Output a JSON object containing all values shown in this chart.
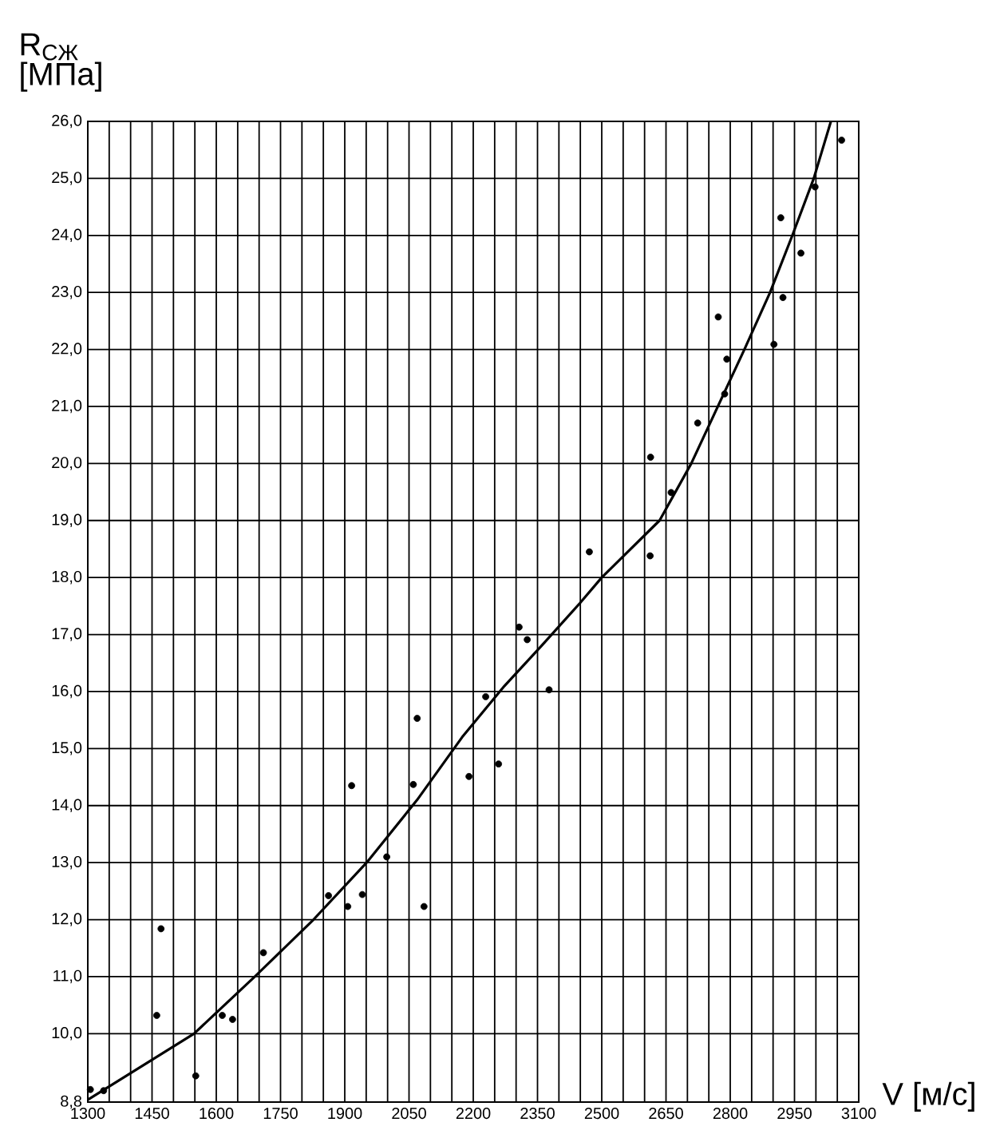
{
  "chart_data": {
    "type": "scatter",
    "xlabel": "V [м/с]",
    "ylabel": "R$_{СЖ}$ [МПа]",
    "xlim": [
      1300,
      3100
    ],
    "ylim": [
      8.8,
      26.0
    ],
    "xticks": [
      1300,
      {
        "value": 1350,
        "label": null
      },
      {
        "value": 1400,
        "label": null
      },
      1450,
      {
        "value": 1500,
        "label": null
      },
      {
        "value": 1550,
        "label": null
      },
      1600,
      {
        "value": 1650,
        "label": null
      },
      {
        "value": 1700,
        "label": null
      },
      1750,
      {
        "value": 1800,
        "label": null
      },
      {
        "value": 1850,
        "label": null
      },
      1900,
      {
        "value": 1950,
        "label": null
      },
      {
        "value": 2000,
        "label": null
      },
      2050,
      {
        "value": 2100,
        "label": null
      },
      {
        "value": 2150,
        "label": null
      },
      2200,
      {
        "value": 2250,
        "label": null
      },
      {
        "value": 2300,
        "label": null
      },
      2350,
      {
        "value": 2400,
        "label": null
      },
      {
        "value": 2450,
        "label": null
      },
      2500,
      {
        "value": 2550,
        "label": null
      },
      {
        "value": 2600,
        "label": null
      },
      2650,
      {
        "value": 2700,
        "label": null
      },
      {
        "value": 2750,
        "label": null
      },
      2800,
      {
        "value": 2850,
        "label": null
      },
      {
        "value": 2900,
        "label": null
      },
      2950,
      {
        "value": 3000,
        "label": null
      },
      {
        "value": 3050,
        "label": null
      },
      3100
    ],
    "yticks": [
      {
        "value": 8.8,
        "label": "8,8"
      },
      {
        "value": 10,
        "label": "10,0"
      },
      {
        "value": 11,
        "label": "11,0"
      },
      {
        "value": 12,
        "label": "12,0"
      },
      {
        "value": 13,
        "label": "13,0"
      },
      {
        "value": 14,
        "label": "14,0"
      },
      {
        "value": 15,
        "label": "15,0"
      },
      {
        "value": 16,
        "label": "16,0"
      },
      {
        "value": 17,
        "label": "17,0"
      },
      {
        "value": 18,
        "label": "18,0"
      },
      {
        "value": 19,
        "label": "19,0"
      },
      {
        "value": 20,
        "label": "20,0"
      },
      {
        "value": 21,
        "label": "21,0"
      },
      {
        "value": 22,
        "label": "22,0"
      },
      {
        "value": 23,
        "label": "23,0"
      },
      {
        "value": 24,
        "label": "24,0"
      },
      {
        "value": 25,
        "label": "25,0"
      },
      {
        "value": 26,
        "label": "26,0"
      }
    ],
    "grid": true,
    "series": [
      {
        "type": "scatter",
        "color": "#000000",
        "marker": "circle",
        "x": [
          1306,
          1337,
          1461,
          1471,
          1552,
          1614,
          1638,
          1710,
          1862,
          1907,
          1916,
          1941,
          1998,
          2060,
          2069,
          2085,
          2190,
          2229,
          2259,
          2307,
          2326,
          2377,
          2471,
          2613,
          2614,
          2662,
          2724,
          2772,
          2787,
          2792,
          2902,
          2918,
          2923,
          2965,
          2998,
          3060
        ],
        "values": [
          9.02,
          9.0,
          10.32,
          11.84,
          9.26,
          10.32,
          10.25,
          11.42,
          12.42,
          12.23,
          14.35,
          12.44,
          13.1,
          14.37,
          15.53,
          12.23,
          14.51,
          15.91,
          14.73,
          17.13,
          16.91,
          16.03,
          18.45,
          18.38,
          20.11,
          19.49,
          20.71,
          22.57,
          21.22,
          21.83,
          22.09,
          24.31,
          22.91,
          23.69,
          24.85,
          25.67
        ]
      },
      {
        "type": "line",
        "color": "#000000",
        "marker": "none",
        "x": [
          1300,
          1548,
          1690,
          1827,
          1951,
          2069,
          2174,
          2273,
          2359,
          2449,
          2500,
          2635,
          2709,
          2771,
          2833,
          2893,
          2945,
          2995,
          3035
        ],
        "values": [
          8.84,
          10.0,
          11.0,
          12.0,
          13.0,
          14.1,
          15.2,
          16.1,
          16.8,
          17.55,
          18.0,
          19.0,
          20.0,
          21.0,
          22.0,
          23.0,
          24.0,
          25.0,
          26.0
        ]
      }
    ]
  }
}
